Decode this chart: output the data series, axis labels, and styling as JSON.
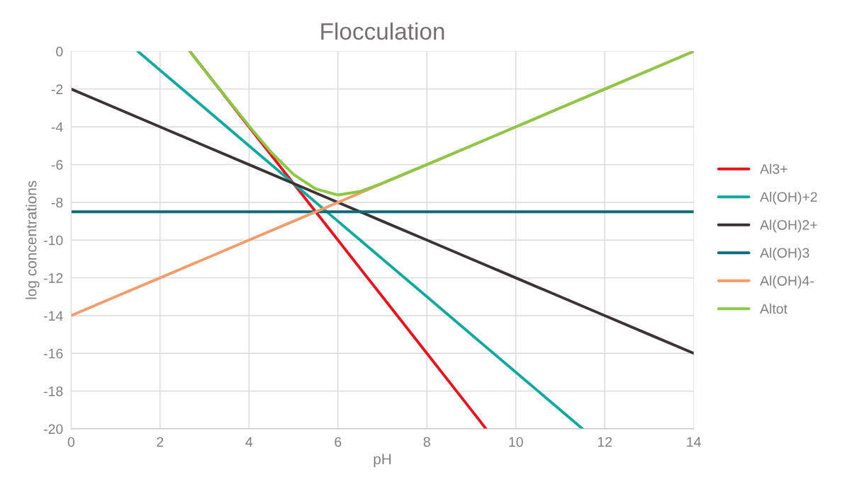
{
  "chart_data": {
    "type": "line",
    "title": "Flocculation",
    "xlabel": "pH",
    "ylabel": "log concentrations",
    "xlim": [
      0,
      14
    ],
    "xticks": [
      0,
      2,
      4,
      6,
      8,
      10,
      12,
      14
    ],
    "ylim": [
      -20,
      0
    ],
    "yticks": [
      -20,
      -18,
      -16,
      -14,
      -12,
      -10,
      -8,
      -6,
      -4,
      -2,
      0
    ],
    "grid": true,
    "legend": "right",
    "marker": "none",
    "line_style": "solid",
    "series": [
      {
        "name": "Al3+",
        "color": "#e3151f",
        "x": [
          2.67,
          4,
          5,
          6,
          7,
          8,
          9,
          9.33
        ],
        "values": [
          0,
          -4,
          -7,
          -10,
          -13,
          -16,
          -19,
          -20
        ]
      },
      {
        "name": "Al(OH)+2",
        "color": "#12a89d",
        "x": [
          1.5,
          2,
          3,
          4,
          5,
          6,
          7,
          8,
          9,
          10,
          11,
          11.5
        ],
        "values": [
          0,
          -1,
          -3,
          -5,
          -7,
          -9,
          -11,
          -13,
          -15,
          -17,
          -19,
          -20
        ]
      },
      {
        "name": "Al(OH)2+",
        "color": "#3b3334",
        "x": [
          0,
          1,
          2,
          3,
          4,
          5,
          6,
          7,
          8,
          9,
          10,
          11,
          12,
          13,
          14
        ],
        "values": [
          -2,
          -3,
          -4,
          -5,
          -6,
          -7,
          -8,
          -9,
          -10,
          -11,
          -12,
          -13,
          -14,
          -15,
          -16
        ]
      },
      {
        "name": "Al(OH)3",
        "color": "#0e6c78",
        "x": [
          0,
          14
        ],
        "values": [
          -8.5,
          -8.5
        ]
      },
      {
        "name": "Al(OH)4-",
        "color": "#f29d6b",
        "x": [
          0,
          1,
          2,
          3,
          4,
          5,
          6,
          7,
          8,
          9,
          10,
          11,
          12,
          13,
          14
        ],
        "values": [
          -14,
          -13,
          -12,
          -11,
          -10,
          -9,
          -8,
          -7,
          -6,
          -5,
          -4,
          -3,
          -2,
          -1,
          0
        ]
      },
      {
        "name": "Altot",
        "color": "#8cc747",
        "x": [
          2.67,
          3,
          4,
          4.5,
          5,
          5.5,
          6,
          6.5,
          7,
          7.5,
          8,
          9,
          10,
          11,
          12,
          13,
          14
        ],
        "values": [
          0,
          -1,
          -3.95,
          -5.35,
          -6.52,
          -7.29,
          -7.61,
          -7.42,
          -6.98,
          -6.49,
          -6,
          -5,
          -4,
          -3,
          -2,
          -1,
          0
        ]
      }
    ]
  }
}
